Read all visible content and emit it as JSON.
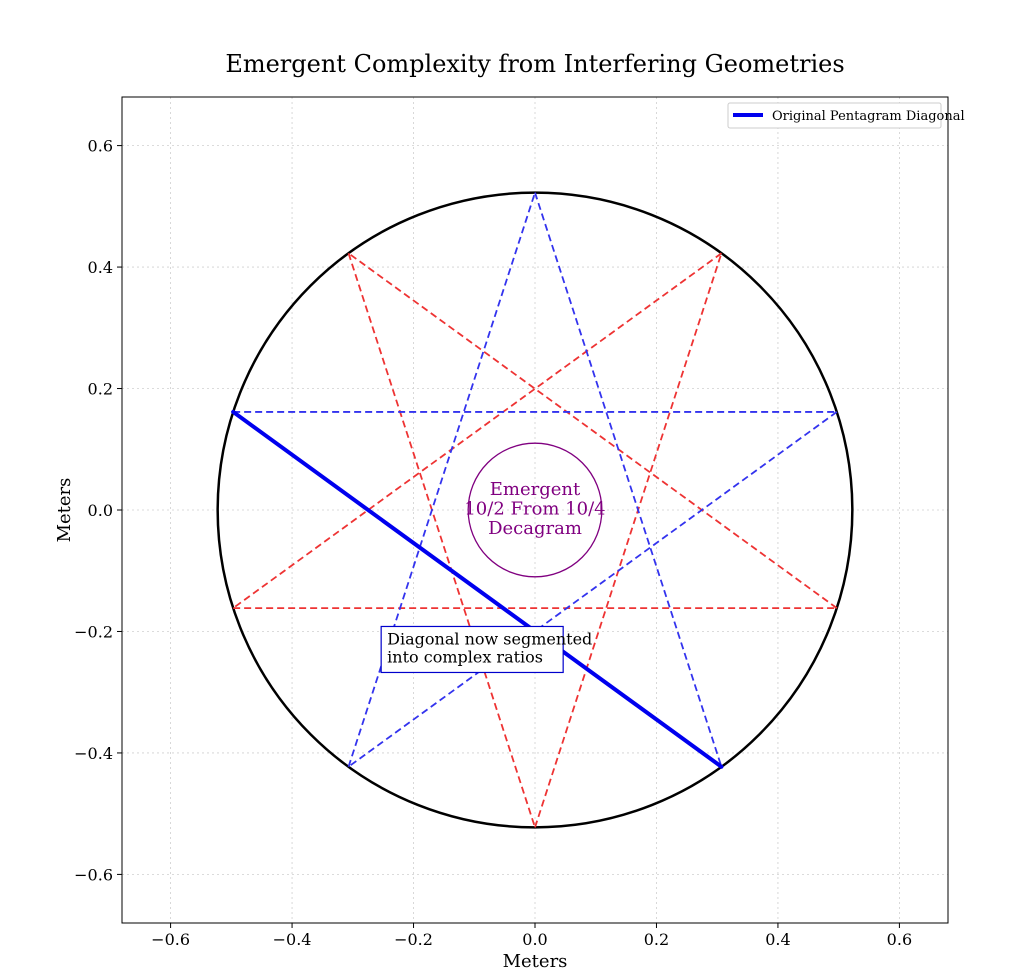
{
  "chart_data": {
    "type": "line",
    "title": "Emergent Complexity from Interfering Geometries",
    "xlabel": "Meters",
    "ylabel": "Meters",
    "xlim": [
      -0.68,
      0.68
    ],
    "ylim": [
      -0.68,
      0.68
    ],
    "x_ticks": [
      -0.6,
      -0.4,
      -0.2,
      0.0,
      0.2,
      0.4,
      0.6
    ],
    "y_ticks": [
      -0.6,
      -0.4,
      -0.2,
      0.0,
      0.2,
      0.4,
      0.6
    ],
    "x_tick_labels": [
      "−0.6",
      "−0.4",
      "−0.2",
      "0.0",
      "0.2",
      "0.4",
      "0.6"
    ],
    "y_tick_labels": [
      "−0.6",
      "−0.4",
      "−0.2",
      "0.0",
      "0.2",
      "0.4",
      "0.6"
    ],
    "grid": true,
    "legend_position": "top-right",
    "legend": [
      {
        "name": "Original Pentagram Diagonal",
        "color": "#0000ee"
      }
    ],
    "outer_circle": {
      "center": [
        0,
        0
      ],
      "radius": 0.5225,
      "color": "#000000"
    },
    "inner_circle": {
      "center": [
        0,
        0
      ],
      "radius": 0.11,
      "color": "#800080"
    },
    "blue_pentagram": {
      "color": "#3333ee",
      "vertices": [
        [
          0,
          0.5225
        ],
        [
          0.497,
          0.1615
        ],
        [
          0.307,
          -0.4227
        ],
        [
          -0.307,
          -0.4227
        ],
        [
          -0.497,
          0.1615
        ]
      ]
    },
    "red_pentagram": {
      "color": "#ee3333",
      "vertices": [
        [
          0,
          -0.5225
        ],
        [
          0.497,
          -0.1615
        ],
        [
          0.307,
          0.4227
        ],
        [
          -0.307,
          0.4227
        ],
        [
          -0.497,
          -0.1615
        ]
      ]
    },
    "series": [
      {
        "name": "Original Pentagram Diagonal",
        "color": "#0000ee",
        "x": [
          -0.497,
          0.307
        ],
        "y": [
          0.1615,
          -0.4227
        ]
      }
    ],
    "annotations": {
      "center_label": [
        "Emergent",
        "10/2 From 10/4",
        "Decagram"
      ],
      "center_label_color": "#800080",
      "box_label": [
        "Diagonal now segmented",
        "into complex ratios"
      ],
      "box_position": [
        -0.25,
        -0.2
      ],
      "box_border_color": "#0000cc"
    }
  }
}
